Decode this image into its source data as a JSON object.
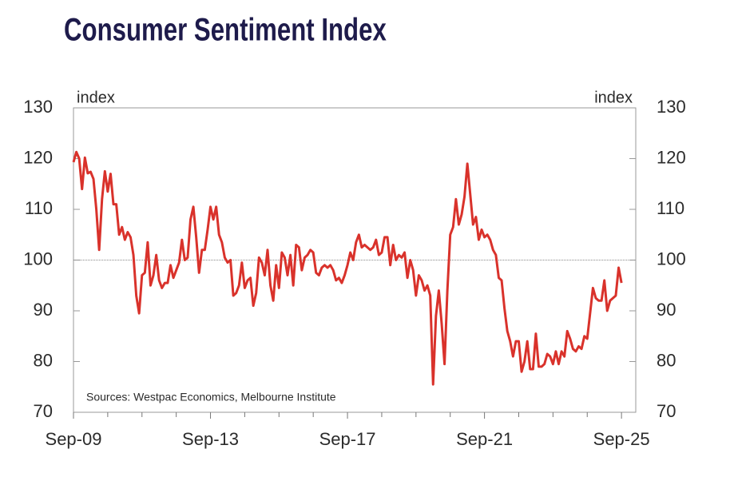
{
  "chart_data": {
    "type": "line",
    "title": "Consumer Sentiment Index",
    "y_label": "index",
    "y2_label": "index",
    "note": "Sources: Westpac Economics, Melbourne Institute",
    "xlim": [
      "2009-09",
      "2026-02"
    ],
    "xticks": [
      {
        "value": "2009-09",
        "label": "Sep-09"
      },
      {
        "value": "2013-09",
        "label": "Sep-13"
      },
      {
        "value": "2017-09",
        "label": "Sep-17"
      },
      {
        "value": "2021-09",
        "label": "Sep-21"
      },
      {
        "value": "2025-09",
        "label": "Sep-25"
      }
    ],
    "x_minor_ticks": [
      "2010-09",
      "2011-09",
      "2012-09",
      "2014-09",
      "2015-09",
      "2016-09",
      "2018-09",
      "2019-09",
      "2020-09",
      "2022-09",
      "2023-09",
      "2024-09"
    ],
    "ylim": [
      70,
      130
    ],
    "yticks": [
      70,
      80,
      90,
      100,
      110,
      120,
      130
    ],
    "y2lim": [
      70,
      130
    ],
    "y2ticks": [
      70,
      80,
      90,
      100,
      110,
      120,
      130
    ],
    "hline": 100,
    "x": [
      "2009-09",
      "2009-10",
      "2009-11",
      "2009-12",
      "2010-01",
      "2010-02",
      "2010-03",
      "2010-04",
      "2010-05",
      "2010-06",
      "2010-07",
      "2010-08",
      "2010-09",
      "2010-10",
      "2010-11",
      "2010-12",
      "2011-01",
      "2011-02",
      "2011-03",
      "2011-04",
      "2011-05",
      "2011-06",
      "2011-07",
      "2011-08",
      "2011-09",
      "2011-10",
      "2011-11",
      "2011-12",
      "2012-01",
      "2012-02",
      "2012-03",
      "2012-04",
      "2012-05",
      "2012-06",
      "2012-07",
      "2012-08",
      "2012-09",
      "2012-10",
      "2012-11",
      "2012-12",
      "2013-01",
      "2013-02",
      "2013-03",
      "2013-04",
      "2013-05",
      "2013-06",
      "2013-07",
      "2013-08",
      "2013-09",
      "2013-10",
      "2013-11",
      "2013-12",
      "2014-01",
      "2014-02",
      "2014-03",
      "2014-04",
      "2014-05",
      "2014-06",
      "2014-07",
      "2014-08",
      "2014-09",
      "2014-10",
      "2014-11",
      "2014-12",
      "2015-01",
      "2015-02",
      "2015-03",
      "2015-04",
      "2015-05",
      "2015-06",
      "2015-07",
      "2015-08",
      "2015-09",
      "2015-10",
      "2015-11",
      "2015-12",
      "2016-01",
      "2016-02",
      "2016-03",
      "2016-04",
      "2016-05",
      "2016-06",
      "2016-07",
      "2016-08",
      "2016-09",
      "2016-10",
      "2016-11",
      "2016-12",
      "2017-01",
      "2017-02",
      "2017-03",
      "2017-04",
      "2017-05",
      "2017-06",
      "2017-07",
      "2017-08",
      "2017-09",
      "2017-10",
      "2017-11",
      "2017-12",
      "2018-01",
      "2018-02",
      "2018-03",
      "2018-04",
      "2018-05",
      "2018-06",
      "2018-07",
      "2018-08",
      "2018-09",
      "2018-10",
      "2018-11",
      "2018-12",
      "2019-01",
      "2019-02",
      "2019-03",
      "2019-04",
      "2019-05",
      "2019-06",
      "2019-07",
      "2019-08",
      "2019-09",
      "2019-10",
      "2019-11",
      "2019-12",
      "2020-01",
      "2020-02",
      "2020-03",
      "2020-04",
      "2020-05",
      "2020-06",
      "2020-07",
      "2020-08",
      "2020-09",
      "2020-10",
      "2020-11",
      "2020-12",
      "2021-01",
      "2021-02",
      "2021-03",
      "2021-04",
      "2021-05",
      "2021-06",
      "2021-07",
      "2021-08",
      "2021-09",
      "2021-10",
      "2021-11",
      "2021-12",
      "2022-01",
      "2022-02",
      "2022-03",
      "2022-04",
      "2022-05",
      "2022-06",
      "2022-07",
      "2022-08",
      "2022-09",
      "2022-10",
      "2022-11",
      "2022-12",
      "2023-01",
      "2023-02",
      "2023-03",
      "2023-04",
      "2023-05",
      "2023-06",
      "2023-07",
      "2023-08",
      "2023-09",
      "2023-10",
      "2023-11",
      "2023-12",
      "2024-01",
      "2024-02",
      "2024-03",
      "2024-04",
      "2024-05",
      "2024-06",
      "2024-07",
      "2024-08",
      "2024-09",
      "2024-10",
      "2024-11",
      "2024-12",
      "2025-01",
      "2025-02",
      "2025-03",
      "2025-04",
      "2025-05",
      "2025-06",
      "2025-07",
      "2025-08",
      "2025-09"
    ],
    "series": [
      {
        "color": "#d9322b",
        "values": [
          119.3,
          121.3,
          120,
          114,
          120.2,
          117.1,
          117.4,
          116,
          110,
          102,
          112,
          117.5,
          113.5,
          117,
          111,
          111,
          105,
          106.5,
          104,
          105.5,
          104.5,
          101,
          93,
          89.5,
          97,
          97.5,
          103.5,
          95,
          97,
          101,
          96,
          94.5,
          95.5,
          95.5,
          99,
          96.5,
          98,
          99.5,
          104,
          100,
          100.5,
          108,
          110.5,
          104.5,
          97.5,
          102,
          102,
          106,
          110.5,
          108,
          110.5,
          105,
          103.5,
          100.5,
          99.5,
          100,
          93,
          93.5,
          95,
          99.5,
          94.5,
          96,
          96.5,
          91,
          93.5,
          100.5,
          99.5,
          97,
          102,
          95,
          92,
          99,
          94.5,
          101.5,
          100.5,
          97,
          101,
          95,
          103,
          102.5,
          98,
          100.5,
          101,
          102,
          101.5,
          97.5,
          97,
          98.5,
          99,
          98.5,
          99,
          98,
          96,
          96.5,
          95.5,
          97,
          99,
          101.5,
          100,
          103.5,
          105,
          102.5,
          103,
          102.5,
          102,
          102.5,
          104,
          101,
          101.5,
          104.5,
          104.5,
          99,
          103,
          100,
          101,
          100.5,
          101.5,
          96.5,
          100,
          98,
          93,
          97,
          96,
          94,
          95,
          93,
          75.5,
          89,
          94,
          87.5,
          79.5,
          94,
          105,
          106.5,
          112,
          107,
          109,
          112.5,
          119,
          113,
          107,
          108.5,
          104,
          106,
          104.5,
          105,
          104,
          102,
          101,
          96.5,
          96,
          90.5,
          86,
          84,
          81,
          84,
          84,
          78,
          80,
          84,
          78.5,
          78.5,
          85.5,
          79,
          79,
          79.5,
          81.5,
          81,
          79.5,
          82,
          79.5,
          82,
          81,
          86,
          84.5,
          82.5,
          82,
          83,
          82.5,
          85,
          84.5,
          89.5,
          94.5,
          92.5,
          92,
          92,
          96,
          90,
          92,
          92.5,
          93,
          98.5,
          95.5
        ]
      }
    ]
  }
}
